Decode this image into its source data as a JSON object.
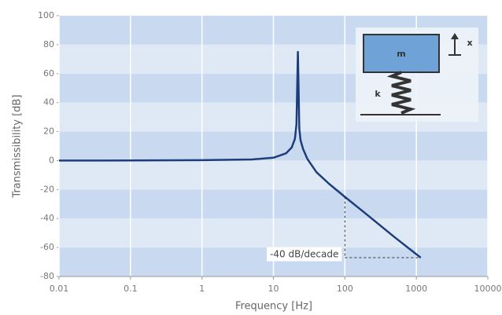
{
  "chart_data": {
    "type": "line",
    "xscale": "log",
    "x_label": "Frequency [Hz]",
    "y_label": "Transmissibility [dB]",
    "x": [
      0.01,
      0.1,
      1,
      5,
      10,
      15,
      18,
      20,
      21,
      22,
      23,
      24,
      26,
      30,
      40,
      60,
      100,
      200,
      500,
      1150
    ],
    "values": [
      0,
      0.1,
      0.3,
      0.8,
      2,
      5,
      9,
      15,
      25,
      75,
      22,
      14,
      8,
      1,
      -8,
      -16,
      -25,
      -37,
      -53,
      -67
    ],
    "color": "#1c3d7a",
    "xlim": [
      0.01,
      10000
    ],
    "xticks": [
      0.01,
      0.1,
      1,
      10,
      100,
      1000,
      10000
    ],
    "ylim": [
      -80,
      100
    ],
    "yticks": [
      100,
      80,
      60,
      40,
      20,
      0,
      -20,
      -40,
      -60,
      -80
    ],
    "band_colors": [
      "#c9daf0",
      "#dfe9f6"
    ],
    "grid_color": "#ffffff",
    "annotation": {
      "text": "-40 dB/decade",
      "x": [
        100,
        1150
      ],
      "y": [
        -25,
        -67
      ]
    },
    "inset_labels": {
      "mass": "m",
      "spring": "k",
      "displacement": "x"
    }
  }
}
